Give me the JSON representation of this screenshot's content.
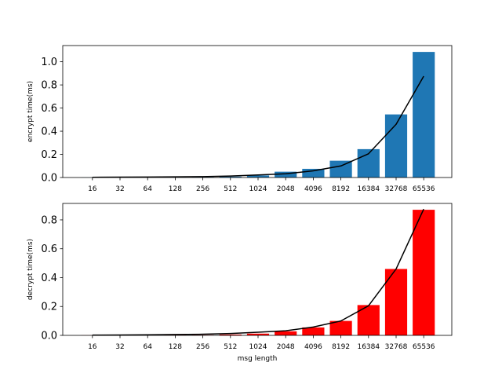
{
  "chart_data": [
    {
      "type": "bar",
      "categories": [
        "16",
        "32",
        "64",
        "128",
        "256",
        "512",
        "1024",
        "2048",
        "4096",
        "8192",
        "16384",
        "32768",
        "65536"
      ],
      "series": [
        {
          "type": "bar",
          "color": "#1f77b4",
          "values": [
            0.001,
            0.001,
            0.002,
            0.003,
            0.005,
            0.008,
            0.018,
            0.05,
            0.075,
            0.145,
            0.245,
            0.545,
            1.085
          ]
        },
        {
          "type": "line",
          "color": "#000000",
          "values": [
            0.002,
            0.003,
            0.004,
            0.006,
            0.008,
            0.013,
            0.022,
            0.032,
            0.058,
            0.1,
            0.205,
            0.46,
            0.875
          ]
        }
      ],
      "xlabel": "",
      "ylabel": "encrypt time(ms)",
      "ylim": [
        0,
        1.14
      ],
      "yticks": [
        "0.0",
        "0.2",
        "0.4",
        "0.6",
        "0.8",
        "1.0"
      ],
      "grid": false
    },
    {
      "type": "bar",
      "categories": [
        "16",
        "32",
        "64",
        "128",
        "256",
        "512",
        "1024",
        "2048",
        "4096",
        "8192",
        "16384",
        "32768",
        "65536"
      ],
      "series": [
        {
          "type": "bar",
          "color": "#ff0000",
          "values": [
            0.001,
            0.001,
            0.001,
            0.002,
            0.003,
            0.006,
            0.012,
            0.028,
            0.055,
            0.1,
            0.21,
            0.46,
            0.87
          ]
        },
        {
          "type": "line",
          "color": "#000000",
          "values": [
            0.002,
            0.003,
            0.004,
            0.006,
            0.008,
            0.013,
            0.022,
            0.032,
            0.058,
            0.1,
            0.205,
            0.46,
            0.875
          ]
        }
      ],
      "xlabel": "msg length",
      "ylabel": "decrypt time(ms)",
      "ylim": [
        0,
        0.914
      ],
      "yticks": [
        "0.0",
        "0.2",
        "0.4",
        "0.6",
        "0.8"
      ],
      "grid": false
    }
  ]
}
